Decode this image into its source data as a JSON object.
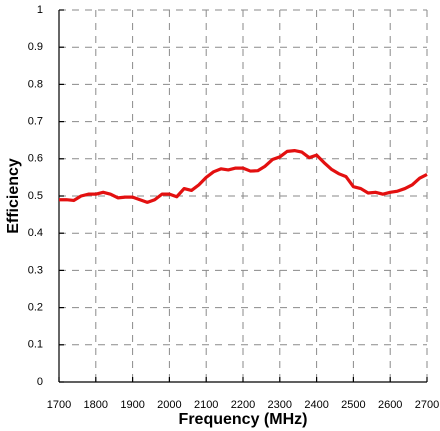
{
  "chart_data": {
    "type": "line",
    "x_label": "Frequency (MHz)",
    "y_label": "Efficiency",
    "x": [
      1700,
      1720,
      1740,
      1760,
      1780,
      1800,
      1820,
      1840,
      1860,
      1880,
      1900,
      1920,
      1940,
      1960,
      1980,
      2000,
      2020,
      2040,
      2060,
      2080,
      2100,
      2120,
      2140,
      2160,
      2180,
      2200,
      2220,
      2240,
      2260,
      2280,
      2300,
      2320,
      2340,
      2360,
      2380,
      2400,
      2420,
      2440,
      2460,
      2480,
      2500,
      2520,
      2540,
      2560,
      2580,
      2600,
      2620,
      2640,
      2660,
      2680,
      2700
    ],
    "series": [
      {
        "color": "#e31010",
        "values": [
          0.49,
          0.49,
          0.488,
          0.5,
          0.505,
          0.505,
          0.51,
          0.505,
          0.495,
          0.497,
          0.497,
          0.49,
          0.483,
          0.49,
          0.505,
          0.505,
          0.498,
          0.52,
          0.515,
          0.53,
          0.55,
          0.565,
          0.573,
          0.57,
          0.575,
          0.575,
          0.567,
          0.568,
          0.58,
          0.598,
          0.605,
          0.62,
          0.622,
          0.618,
          0.603,
          0.61,
          0.59,
          0.572,
          0.56,
          0.552,
          0.525,
          0.52,
          0.508,
          0.51,
          0.505,
          0.51,
          0.513,
          0.52,
          0.53,
          0.548,
          0.558
        ]
      }
    ],
    "xlim": [
      1700,
      2700
    ],
    "xticks": [
      1700,
      1800,
      1900,
      2000,
      2100,
      2200,
      2300,
      2400,
      2500,
      2600,
      2700
    ],
    "ylim": [
      0,
      1
    ],
    "yticks": [
      0,
      0.1,
      0.2,
      0.3,
      0.4,
      0.5,
      0.6,
      0.7,
      0.8,
      0.9,
      1
    ],
    "grid": true
  }
}
